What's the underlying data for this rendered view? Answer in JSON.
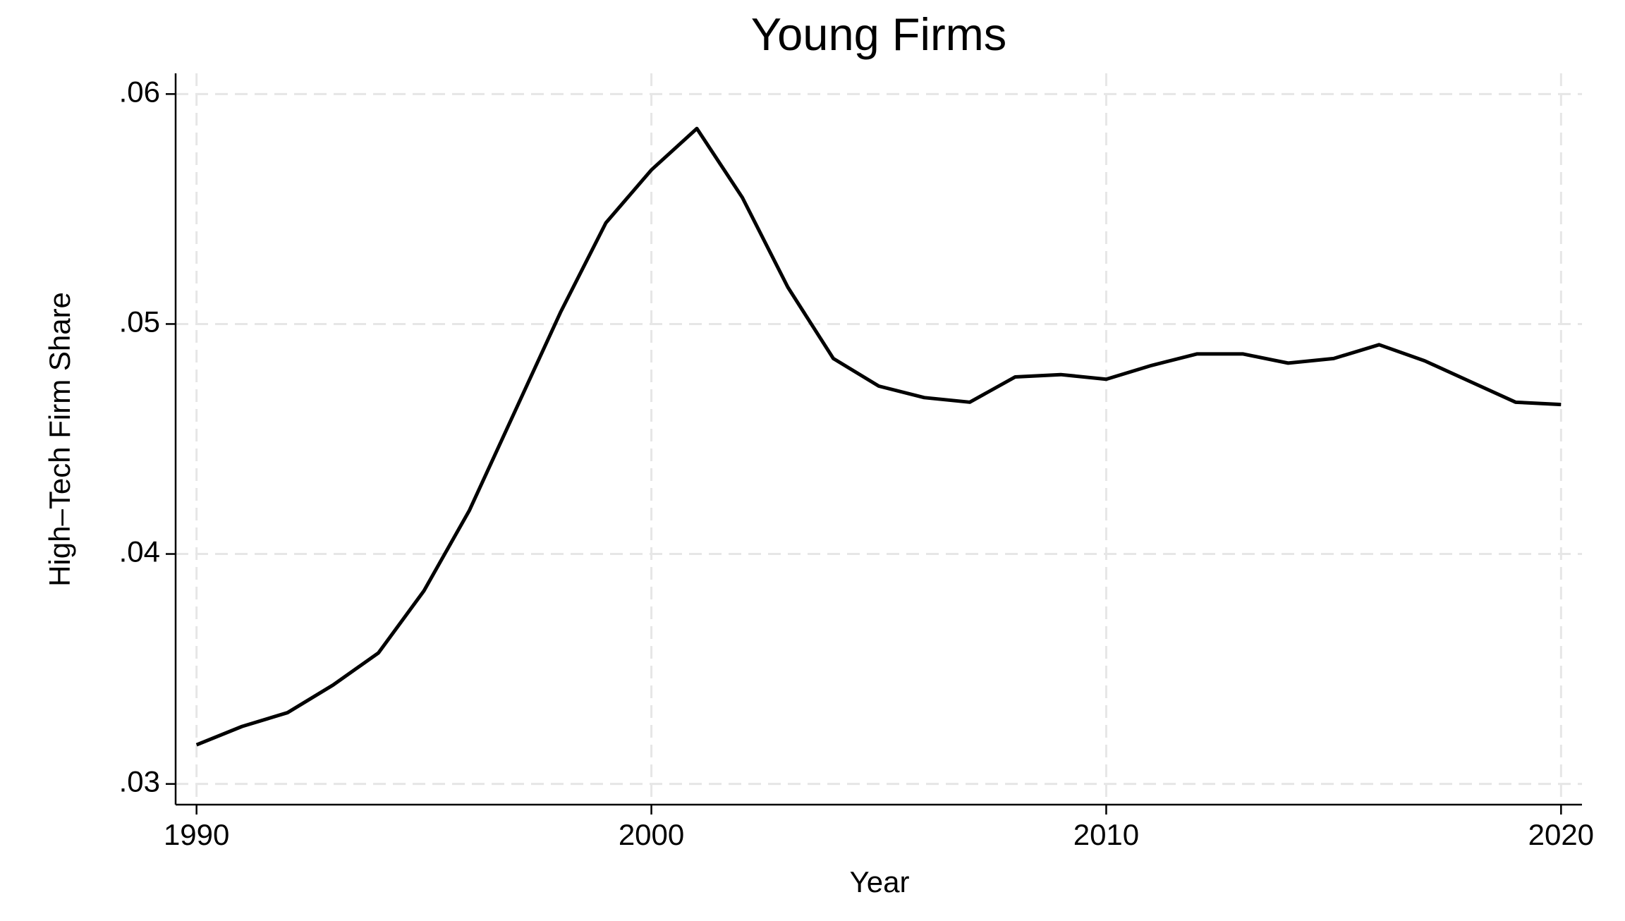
{
  "chart_data": {
    "type": "line",
    "title": "Young Firms",
    "xlabel": "Year",
    "ylabel": "High–Tech Firm Share",
    "x": [
      1990,
      1991,
      1992,
      1993,
      1994,
      1995,
      1996,
      1997,
      1998,
      1999,
      2000,
      2001,
      2002,
      2003,
      2004,
      2005,
      2006,
      2007,
      2008,
      2009,
      2010,
      2011,
      2012,
      2013,
      2014,
      2015,
      2016,
      2017,
      2018,
      2019,
      2020
    ],
    "series": [
      {
        "name": "Young Firms",
        "color": "#000000",
        "values": [
          0.0317,
          0.0325,
          0.0331,
          0.0343,
          0.0357,
          0.0384,
          0.0419,
          0.0462,
          0.0505,
          0.0544,
          0.0567,
          0.0585,
          0.0555,
          0.0516,
          0.0485,
          0.0473,
          0.0468,
          0.0466,
          0.0477,
          0.0478,
          0.0476,
          0.0482,
          0.0487,
          0.0487,
          0.0483,
          0.0485,
          0.0491,
          0.0484,
          0.0475,
          0.0466,
          0.0465
        ]
      }
    ],
    "xlim": [
      1989.54,
      2020.46
    ],
    "xticks": [
      1990,
      2000,
      2010,
      2020
    ],
    "ylim": [
      0.0291,
      0.0609
    ],
    "yticks": [
      {
        "value": 0.03,
        "label": ".03"
      },
      {
        "value": 0.04,
        "label": ".04"
      },
      {
        "value": 0.05,
        "label": ".05"
      },
      {
        "value": 0.06,
        "label": ".06"
      }
    ],
    "grid": true
  }
}
